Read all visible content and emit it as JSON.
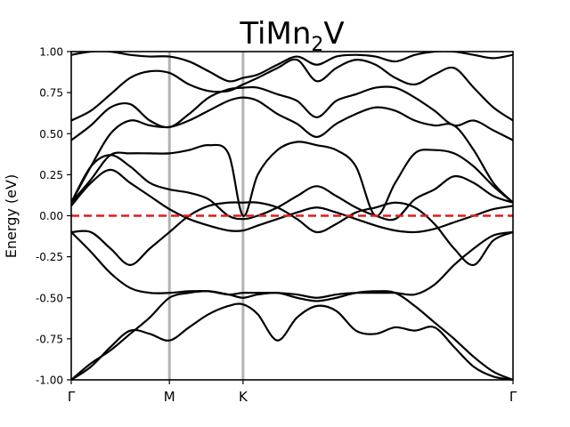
{
  "chart_data": {
    "type": "line",
    "title": "TiMn",
    "title_subscript": "2",
    "title_suffix": "V",
    "ylabel": "Energy (eV)",
    "xlabel": "",
    "ylim": [
      -1.0,
      1.0
    ],
    "yticks": [
      "-1.00",
      "-0.75",
      "-0.50",
      "-0.25",
      "0.00",
      "0.25",
      "0.50",
      "0.75",
      "1.00"
    ],
    "ytick_values": [
      -1.0,
      -0.75,
      -0.5,
      -0.25,
      0.0,
      0.25,
      0.5,
      0.75,
      1.0
    ],
    "kpoints": [
      {
        "label": "Γ",
        "x": 0.0
      },
      {
        "label": "M",
        "x": 1.0
      },
      {
        "label": "K",
        "x": 1.75
      },
      {
        "label": "Γ",
        "x": 4.5
      }
    ],
    "xlim": [
      0.0,
      4.5
    ],
    "fermi_level": 0.0,
    "colors": {
      "bands": "#000000",
      "fermi": "#e41a1c",
      "kpoint_lines": "#b3b3b3"
    },
    "grid": false,
    "series": [
      {
        "x": [
          0.0,
          0.2,
          0.4,
          0.6,
          0.8,
          1.0,
          1.2,
          1.4,
          1.6,
          1.75,
          1.9,
          2.1,
          2.3,
          2.5,
          2.7,
          2.9,
          3.1,
          3.3,
          3.5,
          3.7,
          3.9,
          4.1,
          4.3,
          4.5
        ],
        "y": [
          -1.0,
          -0.92,
          -0.8,
          -0.7,
          -0.72,
          -0.76,
          -0.68,
          -0.6,
          -0.55,
          -0.54,
          -0.6,
          -0.76,
          -0.62,
          -0.55,
          -0.58,
          -0.7,
          -0.72,
          -0.68,
          -0.7,
          -0.68,
          -0.8,
          -0.92,
          -0.98,
          -1.0
        ]
      },
      {
        "x": [
          0.0,
          0.2,
          0.4,
          0.6,
          0.8,
          1.0,
          1.2,
          1.4,
          1.6,
          1.75,
          1.9,
          2.1,
          2.3,
          2.5,
          2.7,
          2.9,
          3.1,
          3.3,
          3.5,
          3.7,
          3.9,
          4.1,
          4.3,
          4.5
        ],
        "y": [
          -1.0,
          -0.9,
          -0.82,
          -0.72,
          -0.62,
          -0.5,
          -0.47,
          -0.46,
          -0.48,
          -0.5,
          -0.48,
          -0.47,
          -0.5,
          -0.52,
          -0.5,
          -0.47,
          -0.46,
          -0.47,
          -0.55,
          -0.65,
          -0.75,
          -0.86,
          -0.95,
          -1.0
        ]
      },
      {
        "x": [
          0.0,
          0.2,
          0.4,
          0.6,
          0.8,
          1.0,
          1.2,
          1.4,
          1.6,
          1.75,
          1.9,
          2.1,
          2.3,
          2.5,
          2.7,
          2.9,
          3.1,
          3.3,
          3.5,
          3.7,
          3.9,
          4.1,
          4.3,
          4.5
        ],
        "y": [
          -0.1,
          -0.22,
          -0.35,
          -0.44,
          -0.47,
          -0.47,
          -0.46,
          -0.46,
          -0.48,
          -0.47,
          -0.47,
          -0.47,
          -0.48,
          -0.5,
          -0.48,
          -0.47,
          -0.47,
          -0.47,
          -0.48,
          -0.42,
          -0.3,
          -0.2,
          -0.12,
          -0.1
        ]
      },
      {
        "x": [
          0.0,
          0.2,
          0.4,
          0.6,
          0.8,
          1.0,
          1.2,
          1.4,
          1.6,
          1.75,
          1.9,
          2.1,
          2.3,
          2.5,
          2.7,
          2.9,
          3.1,
          3.3,
          3.5,
          3.7,
          3.9,
          4.1,
          4.3,
          4.5
        ],
        "y": [
          -0.1,
          -0.1,
          -0.2,
          -0.3,
          -0.2,
          -0.1,
          0.0,
          0.06,
          0.08,
          0.08,
          0.08,
          0.05,
          -0.02,
          -0.1,
          -0.05,
          0.02,
          0.05,
          0.08,
          0.05,
          -0.05,
          -0.2,
          -0.3,
          -0.15,
          -0.1
        ]
      },
      {
        "x": [
          0.0,
          0.2,
          0.4,
          0.6,
          0.8,
          1.0,
          1.2,
          1.4,
          1.6,
          1.75,
          1.9,
          2.1,
          2.3,
          2.5,
          2.7,
          2.9,
          3.1,
          3.3,
          3.5,
          3.7,
          3.9,
          4.1,
          4.3,
          4.5
        ],
        "y": [
          0.06,
          0.2,
          0.28,
          0.2,
          0.12,
          0.04,
          -0.02,
          -0.06,
          -0.09,
          -0.09,
          -0.06,
          -0.02,
          0.02,
          0.05,
          0.02,
          -0.02,
          -0.06,
          -0.09,
          -0.1,
          -0.08,
          -0.04,
          0.0,
          0.04,
          0.06
        ]
      },
      {
        "x": [
          0.0,
          0.2,
          0.4,
          0.6,
          0.8,
          1.0,
          1.2,
          1.4,
          1.6,
          1.75,
          1.9,
          2.1,
          2.3,
          2.5,
          2.7,
          2.9,
          3.1,
          3.3,
          3.5,
          3.7,
          3.9,
          4.1,
          4.3,
          4.5
        ],
        "y": [
          0.08,
          0.3,
          0.37,
          0.3,
          0.2,
          0.16,
          0.14,
          0.1,
          0.0,
          -0.02,
          0.0,
          0.05,
          0.12,
          0.18,
          0.12,
          0.05,
          0.0,
          -0.02,
          0.1,
          0.16,
          0.24,
          0.2,
          0.12,
          0.08
        ]
      },
      {
        "x": [
          0.0,
          0.2,
          0.4,
          0.6,
          0.8,
          1.0,
          1.2,
          1.4,
          1.6,
          1.75,
          1.9,
          2.1,
          2.3,
          2.5,
          2.7,
          2.9,
          3.1,
          3.3,
          3.5,
          3.7,
          3.9,
          4.1,
          4.3,
          4.5
        ],
        "y": [
          0.08,
          0.22,
          0.37,
          0.38,
          0.38,
          0.38,
          0.4,
          0.43,
          0.38,
          0.0,
          0.25,
          0.4,
          0.45,
          0.43,
          0.4,
          0.3,
          0.0,
          0.2,
          0.38,
          0.4,
          0.38,
          0.3,
          0.18,
          0.08
        ]
      },
      {
        "x": [
          0.0,
          0.2,
          0.4,
          0.6,
          0.8,
          1.0,
          1.2,
          1.4,
          1.6,
          1.75,
          1.9,
          2.1,
          2.3,
          2.5,
          2.7,
          2.9,
          3.1,
          3.3,
          3.5,
          3.7,
          3.9,
          4.1,
          4.3,
          4.5
        ],
        "y": [
          0.08,
          0.3,
          0.5,
          0.58,
          0.55,
          0.54,
          0.58,
          0.64,
          0.7,
          0.72,
          0.7,
          0.62,
          0.56,
          0.48,
          0.56,
          0.62,
          0.66,
          0.64,
          0.58,
          0.55,
          0.55,
          0.4,
          0.2,
          0.08
        ]
      },
      {
        "x": [
          0.0,
          0.2,
          0.4,
          0.6,
          0.8,
          1.0,
          1.2,
          1.4,
          1.6,
          1.75,
          1.9,
          2.1,
          2.3,
          2.5,
          2.7,
          2.9,
          3.1,
          3.3,
          3.5,
          3.7,
          3.9,
          4.1,
          4.3,
          4.5
        ],
        "y": [
          0.46,
          0.55,
          0.66,
          0.68,
          0.58,
          0.54,
          0.62,
          0.72,
          0.77,
          0.78,
          0.78,
          0.74,
          0.7,
          0.6,
          0.7,
          0.74,
          0.78,
          0.78,
          0.72,
          0.64,
          0.55,
          0.58,
          0.52,
          0.46
        ]
      },
      {
        "x": [
          0.0,
          0.2,
          0.4,
          0.6,
          0.8,
          1.0,
          1.2,
          1.4,
          1.6,
          1.75,
          1.9,
          2.1,
          2.3,
          2.5,
          2.7,
          2.9,
          3.1,
          3.3,
          3.5,
          3.7,
          3.9,
          4.1,
          4.3,
          4.5
        ],
        "y": [
          0.58,
          0.64,
          0.74,
          0.84,
          0.88,
          0.87,
          0.8,
          0.76,
          0.76,
          0.8,
          0.84,
          0.9,
          0.95,
          0.82,
          0.9,
          0.95,
          0.92,
          0.84,
          0.8,
          0.86,
          0.9,
          0.78,
          0.66,
          0.58
        ]
      },
      {
        "x": [
          0.0,
          0.2,
          0.4,
          0.6,
          0.8,
          1.0,
          1.2,
          1.4,
          1.6,
          1.75,
          1.9,
          2.1,
          2.3,
          2.5,
          2.7,
          2.9,
          3.1,
          3.3,
          3.5,
          3.7,
          3.9,
          4.1,
          4.3,
          4.5
        ],
        "y": [
          0.98,
          1.0,
          1.0,
          0.98,
          0.97,
          0.97,
          0.94,
          0.88,
          0.82,
          0.84,
          0.86,
          0.92,
          0.97,
          0.92,
          0.97,
          0.98,
          0.97,
          0.94,
          0.98,
          1.0,
          1.0,
          0.98,
          0.96,
          0.98
        ]
      }
    ]
  }
}
